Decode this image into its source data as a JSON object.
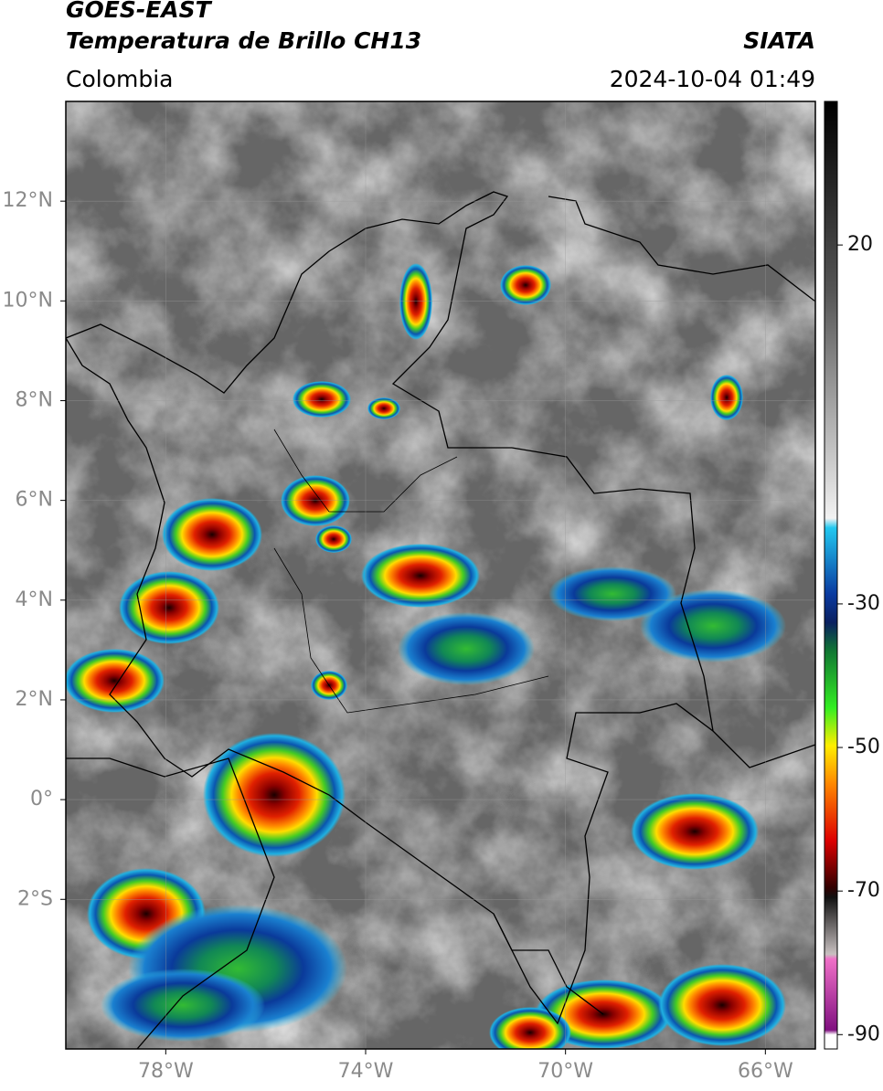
{
  "map": {
    "title": "GOES-EAST",
    "subtitle": "Temperatura de Brillo CH13",
    "source": "SIATA",
    "region": "Colombia",
    "timestamp": "2024-10-04 01:49",
    "xlim": [
      -80,
      -65
    ],
    "ylim": [
      -5,
      14
    ],
    "xticks": [
      {
        "value": -78,
        "label": "78°W"
      },
      {
        "value": -74,
        "label": "74°W"
      },
      {
        "value": -70,
        "label": "70°W"
      },
      {
        "value": -66,
        "label": "66°W"
      }
    ],
    "yticks": [
      {
        "value": 12,
        "label": "12°N"
      },
      {
        "value": 10,
        "label": "10°N"
      },
      {
        "value": 8,
        "label": "8°N"
      },
      {
        "value": 6,
        "label": "6°N"
      },
      {
        "value": 4,
        "label": "4°N"
      },
      {
        "value": 2,
        "label": "2°N"
      },
      {
        "value": 0,
        "label": "0°"
      },
      {
        "value": -2,
        "label": "2°S"
      }
    ],
    "grid": true,
    "colorbar": {
      "lim": [
        -92,
        40
      ],
      "ticks": [
        20,
        -30,
        -50,
        -70,
        -90
      ]
    }
  }
}
